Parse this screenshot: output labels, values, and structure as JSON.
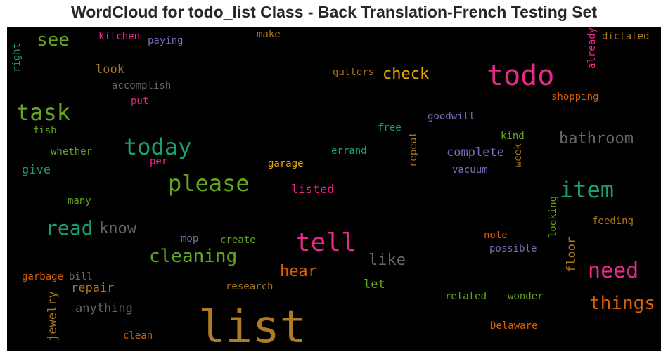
{
  "chart_data": {
    "type": "wordcloud",
    "title": "WordCloud for todo_list Class - Back Translation-French Testing Set",
    "words": [
      {
        "text": "list",
        "color": "#b07b25"
      },
      {
        "text": "todo",
        "color": "#e7298a"
      },
      {
        "text": "tell",
        "color": "#e7298a"
      },
      {
        "text": "please",
        "color": "#66a61e"
      },
      {
        "text": "today",
        "color": "#1b9e77"
      },
      {
        "text": "task",
        "color": "#66a61e"
      },
      {
        "text": "item",
        "color": "#1b9e77"
      },
      {
        "text": "need",
        "color": "#e7298a"
      },
      {
        "text": "cleaning",
        "color": "#66a61e"
      },
      {
        "text": "read",
        "color": "#1b9e77"
      },
      {
        "text": "things",
        "color": "#d95f02"
      },
      {
        "text": "see",
        "color": "#66a61e"
      },
      {
        "text": "check",
        "color": "#e6ab02"
      },
      {
        "text": "bathroom",
        "color": "#666666"
      },
      {
        "text": "know",
        "color": "#666666"
      },
      {
        "text": "like",
        "color": "#666666"
      },
      {
        "text": "hear",
        "color": "#d95f02"
      },
      {
        "text": "complete",
        "color": "#7570b3"
      },
      {
        "text": "listed",
        "color": "#e7298a"
      },
      {
        "text": "repair",
        "color": "#a6761d"
      },
      {
        "text": "anything",
        "color": "#666666"
      },
      {
        "text": "floor",
        "color": "#a6761d"
      },
      {
        "text": "jewelry",
        "color": "#a6761d"
      },
      {
        "text": "let",
        "color": "#66a61e"
      },
      {
        "text": "look",
        "color": "#a6761d"
      },
      {
        "text": "give",
        "color": "#1b9e77"
      },
      {
        "text": "fish",
        "color": "#66a61e"
      },
      {
        "text": "whether",
        "color": "#66a61e"
      },
      {
        "text": "many",
        "color": "#66a61e"
      },
      {
        "text": "kitchen",
        "color": "#e7298a"
      },
      {
        "text": "paying",
        "color": "#7570b3"
      },
      {
        "text": "make",
        "color": "#a6761d"
      },
      {
        "text": "right",
        "color": "#1b9e77"
      },
      {
        "text": "accomplish",
        "color": "#666666"
      },
      {
        "text": "put",
        "color": "#e7298a"
      },
      {
        "text": "gutters",
        "color": "#a6761d"
      },
      {
        "text": "already",
        "color": "#e7298a"
      },
      {
        "text": "dictated",
        "color": "#a6761d"
      },
      {
        "text": "shopping",
        "color": "#d95f02"
      },
      {
        "text": "goodwill",
        "color": "#7570b3"
      },
      {
        "text": "free",
        "color": "#1b9e77"
      },
      {
        "text": "kind",
        "color": "#66a61e"
      },
      {
        "text": "repeat",
        "color": "#a6761d"
      },
      {
        "text": "week",
        "color": "#a6761d"
      },
      {
        "text": "errand",
        "color": "#1b9e77"
      },
      {
        "text": "garage",
        "color": "#e6ab02"
      },
      {
        "text": "per",
        "color": "#e7298a"
      },
      {
        "text": "vacuum",
        "color": "#7570b3"
      },
      {
        "text": "looking",
        "color": "#66a61e"
      },
      {
        "text": "feeding",
        "color": "#a6761d"
      },
      {
        "text": "note",
        "color": "#d95f02"
      },
      {
        "text": "mop",
        "color": "#7570b3"
      },
      {
        "text": "create",
        "color": "#66a61e"
      },
      {
        "text": "possible",
        "color": "#7570b3"
      },
      {
        "text": "garbage",
        "color": "#d95f02"
      },
      {
        "text": "bill",
        "color": "#666666"
      },
      {
        "text": "research",
        "color": "#a6761d"
      },
      {
        "text": "related",
        "color": "#66a61e"
      },
      {
        "text": "wonder",
        "color": "#66a61e"
      },
      {
        "text": "Delaware",
        "color": "#d95f02"
      },
      {
        "text": "clean",
        "color": "#d95f02"
      }
    ]
  }
}
